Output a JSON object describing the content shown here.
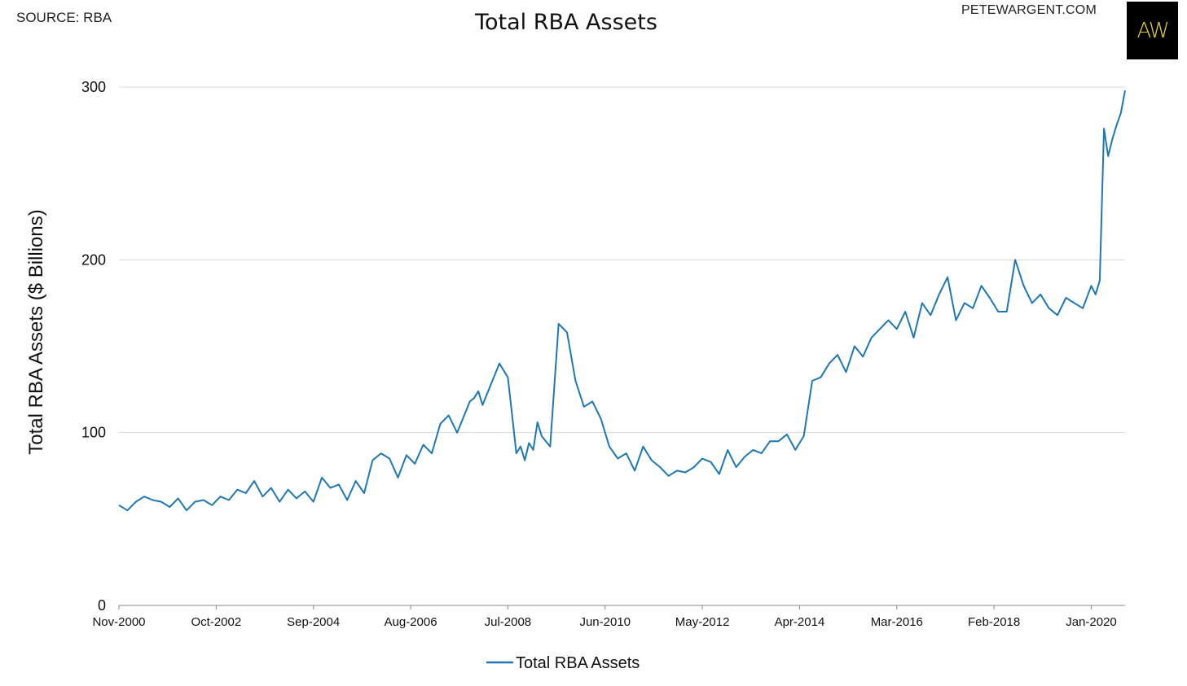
{
  "header": {
    "source": "SOURCE: RBA",
    "site": "PETEWARGENT.COM",
    "logo_text": "AW"
  },
  "chart_data": {
    "type": "line",
    "title": "Total RBA Assets",
    "xlabel": "",
    "ylabel": "Total RBA Assets ($ Billions)",
    "ylim": [
      0,
      300
    ],
    "yticks": [
      0,
      100,
      200,
      300
    ],
    "xticks": [
      "Nov-2000",
      "Oct-2002",
      "Sep-2004",
      "Aug-2006",
      "Jul-2008",
      "Jun-2010",
      "May-2012",
      "Apr-2014",
      "Mar-2016",
      "Feb-2018",
      "Jan-2020"
    ],
    "xlim": [
      "2000-11",
      "2020-09"
    ],
    "grid": true,
    "legend": "bottom",
    "color": "#1f77b4",
    "series": [
      {
        "name": "Total RBA Assets",
        "x": [
          "2000-11",
          "2001-01",
          "2001-03",
          "2001-05",
          "2001-07",
          "2001-09",
          "2001-11",
          "2002-01",
          "2002-03",
          "2002-05",
          "2002-07",
          "2002-09",
          "2002-11",
          "2003-01",
          "2003-03",
          "2003-05",
          "2003-07",
          "2003-09",
          "2003-11",
          "2004-01",
          "2004-03",
          "2004-05",
          "2004-07",
          "2004-09",
          "2004-11",
          "2005-01",
          "2005-03",
          "2005-05",
          "2005-07",
          "2005-09",
          "2005-11",
          "2006-01",
          "2006-03",
          "2006-05",
          "2006-07",
          "2006-09",
          "2006-11",
          "2007-01",
          "2007-03",
          "2007-05",
          "2007-07",
          "2007-09",
          "2007-10",
          "2007-11",
          "2007-12",
          "2008-01",
          "2008-03",
          "2008-05",
          "2008-07",
          "2008-08",
          "2008-09",
          "2008-10",
          "2008-11",
          "2008-12",
          "2009-01",
          "2009-02",
          "2009-03",
          "2009-05",
          "2009-07",
          "2009-09",
          "2009-11",
          "2010-01",
          "2010-03",
          "2010-05",
          "2010-07",
          "2010-09",
          "2010-11",
          "2011-01",
          "2011-03",
          "2011-05",
          "2011-07",
          "2011-09",
          "2011-11",
          "2012-01",
          "2012-03",
          "2012-05",
          "2012-07",
          "2012-09",
          "2012-11",
          "2013-01",
          "2013-03",
          "2013-05",
          "2013-07",
          "2013-09",
          "2013-11",
          "2014-01",
          "2014-03",
          "2014-05",
          "2014-07",
          "2014-09",
          "2014-11",
          "2015-01",
          "2015-03",
          "2015-05",
          "2015-07",
          "2015-09",
          "2015-11",
          "2016-01",
          "2016-03",
          "2016-05",
          "2016-07",
          "2016-09",
          "2016-11",
          "2017-01",
          "2017-03",
          "2017-05",
          "2017-07",
          "2017-09",
          "2017-11",
          "2018-01",
          "2018-03",
          "2018-05",
          "2018-07",
          "2018-09",
          "2018-11",
          "2019-01",
          "2019-03",
          "2019-05",
          "2019-07",
          "2019-09",
          "2019-11",
          "2020-01",
          "2020-02",
          "2020-03",
          "2020-04",
          "2020-05",
          "2020-06",
          "2020-07",
          "2020-08",
          "2020-09"
        ],
        "values": [
          58,
          55,
          60,
          63,
          61,
          60,
          57,
          62,
          55,
          60,
          61,
          58,
          63,
          61,
          67,
          65,
          72,
          63,
          68,
          60,
          67,
          62,
          66,
          60,
          74,
          68,
          70,
          61,
          72,
          65,
          84,
          88,
          85,
          74,
          87,
          82,
          93,
          88,
          105,
          110,
          100,
          112,
          118,
          120,
          124,
          116,
          128,
          140,
          132,
          110,
          88,
          92,
          84,
          94,
          90,
          106,
          98,
          92,
          163,
          158,
          130,
          115,
          118,
          108,
          92,
          85,
          88,
          78,
          92,
          84,
          80,
          75,
          78,
          77,
          80,
          85,
          83,
          76,
          90,
          80,
          86,
          90,
          88,
          95,
          95,
          99,
          90,
          98,
          130,
          132,
          140,
          145,
          135,
          150,
          144,
          155,
          160,
          165,
          160,
          170,
          155,
          175,
          168,
          180,
          190,
          165,
          175,
          172,
          185,
          178,
          170,
          170,
          200,
          185,
          175,
          180,
          172,
          168,
          178,
          175,
          172,
          185,
          180,
          188,
          276,
          260,
          270,
          278,
          285,
          298
        ]
      }
    ]
  },
  "legend": {
    "label": "Total RBA Assets"
  }
}
